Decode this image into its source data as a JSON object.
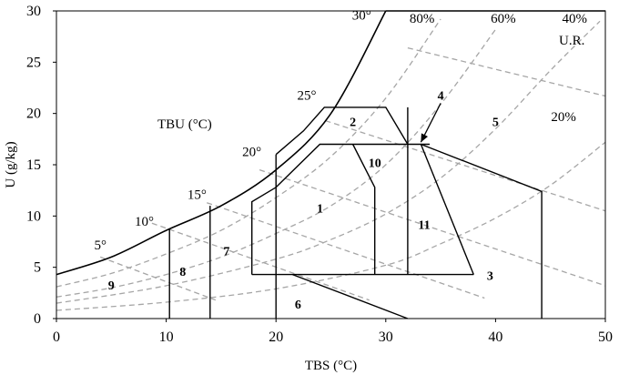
{
  "chart_data": {
    "type": "psychrometric",
    "xlabel": "TBS (°C)",
    "ylabel": "U (g/kg)",
    "xlim": [
      0,
      50
    ],
    "ylim": [
      0,
      30
    ],
    "xticks": [
      "0",
      "10",
      "20",
      "30",
      "40",
      "50"
    ],
    "yticks": [
      "0",
      "5",
      "10",
      "15",
      "20",
      "25",
      "30"
    ],
    "annotations": {
      "tbu_label": "TBU (°C)",
      "ur_label": "U.R.",
      "arrow_label": "4"
    },
    "saturation_curve": {
      "x": [
        0,
        5,
        10,
        15,
        20,
        25,
        30
      ],
      "y": [
        4.3,
        6.0,
        8.6,
        11.0,
        14.5,
        20.0,
        30.0
      ]
    },
    "wet_bulb_labels": [
      {
        "t": 5,
        "label": "5°",
        "tx": 4.0,
        "ty": 7.2
      },
      {
        "t": 10,
        "label": "10°",
        "tx": 8.0,
        "ty": 9.5
      },
      {
        "t": 15,
        "label": "15°",
        "tx": 12.8,
        "ty": 12.1
      },
      {
        "t": 20,
        "label": "20°",
        "tx": 17.8,
        "ty": 16.3
      },
      {
        "t": 25,
        "label": "25°",
        "tx": 22.8,
        "ty": 21.8
      },
      {
        "t": 30,
        "label": "30°",
        "tx": 27.8,
        "ty": 29.6
      }
    ],
    "wet_bulb_lines": [
      {
        "t": 5,
        "x": [
          4.0,
          14.5
        ],
        "y": [
          6.0,
          1.8
        ]
      },
      {
        "t": 10,
        "x": [
          8.7,
          28.5
        ],
        "y": [
          9.3,
          1.8
        ]
      },
      {
        "t": 15,
        "x": [
          13.7,
          39.0
        ],
        "y": [
          11.3,
          2.0
        ]
      },
      {
        "t": 20,
        "x": [
          18.5,
          50.0
        ],
        "y": [
          14.5,
          3.2
        ]
      },
      {
        "t": 25,
        "x": [
          24.5,
          50.0
        ],
        "y": [
          19.3,
          10.5
        ]
      },
      {
        "t": 30,
        "x": [
          32.0,
          50.0
        ],
        "y": [
          26.4,
          21.7
        ]
      }
    ],
    "rh_curves": [
      {
        "label": "80%",
        "tx": 33.3,
        "ty": 29.3,
        "x": [
          0,
          5,
          10,
          15,
          20,
          25,
          30,
          35
        ],
        "y": [
          3.1,
          4.4,
          6.3,
          8.6,
          11.8,
          15.8,
          21.5,
          29.2
        ]
      },
      {
        "label": "60%",
        "tx": 40.7,
        "ty": 29.3,
        "x": [
          0,
          5,
          10,
          15,
          20,
          25,
          30,
          35,
          40
        ],
        "y": [
          2.1,
          3.0,
          4.3,
          6.0,
          8.3,
          11.0,
          15.0,
          20.9,
          28.2
        ]
      },
      {
        "label": "40%",
        "tx": 47.2,
        "ty": 29.3,
        "x": [
          0,
          10,
          20,
          25,
          30,
          35,
          40,
          45,
          49.5
        ],
        "y": [
          1.5,
          3.2,
          5.8,
          7.7,
          10.2,
          13.7,
          18.5,
          24.2,
          29.0
        ]
      },
      {
        "label": "20%",
        "tx": 46.2,
        "ty": 19.7,
        "x": [
          0,
          10,
          20,
          30,
          35,
          40,
          45,
          50
        ],
        "y": [
          0.8,
          1.6,
          2.9,
          5.2,
          7.3,
          9.8,
          13.0,
          17.2
        ]
      }
    ],
    "zones": [
      {
        "label": "1",
        "tx": 24.0,
        "ty": 10.8
      },
      {
        "label": "2",
        "tx": 27.0,
        "ty": 19.2
      },
      {
        "label": "3",
        "tx": 39.5,
        "ty": 4.2
      },
      {
        "label": "4",
        "tx": 35.0,
        "ty": 21.8
      },
      {
        "label": "5",
        "tx": 40.0,
        "ty": 19.2
      },
      {
        "label": "6",
        "tx": 22.0,
        "ty": 1.4
      },
      {
        "label": "7",
        "tx": 15.5,
        "ty": 6.6
      },
      {
        "label": "8",
        "tx": 11.5,
        "ty": 4.6
      },
      {
        "label": "9",
        "tx": 5.0,
        "ty": 3.3
      },
      {
        "label": "10",
        "tx": 29.0,
        "ty": 15.2
      },
      {
        "label": "11",
        "tx": 33.5,
        "ty": 9.2
      }
    ],
    "zone_lines": [
      [
        [
          10.3,
          0
        ],
        [
          10.3,
          8.8
        ]
      ],
      [
        [
          14.0,
          0
        ],
        [
          14.0,
          11.0
        ]
      ],
      [
        [
          20.0,
          0
        ],
        [
          20.0,
          16.0
        ]
      ],
      [
        [
          17.8,
          4.3
        ],
        [
          38.0,
          4.3
        ]
      ],
      [
        [
          17.8,
          4.3
        ],
        [
          17.8,
          11.4
        ],
        [
          20.0,
          12.8
        ]
      ],
      [
        [
          20.0,
          12.8
        ],
        [
          24.0,
          17.0
        ],
        [
          34.0,
          17.0
        ]
      ],
      [
        [
          20.0,
          16.0
        ],
        [
          22.5,
          18.3
        ],
        [
          24.4,
          20.6
        ],
        [
          30.0,
          20.6
        ],
        [
          32.0,
          17.0
        ]
      ],
      [
        [
          32.0,
          20.6
        ],
        [
          32.0,
          4.3
        ]
      ],
      [
        [
          27.0,
          17.0
        ],
        [
          29.0,
          12.8
        ],
        [
          29.0,
          4.3
        ]
      ],
      [
        [
          33.2,
          17.0
        ],
        [
          38.0,
          4.3
        ]
      ],
      [
        [
          33.2,
          17.0
        ],
        [
          44.2,
          12.4
        ],
        [
          44.2,
          0
        ]
      ],
      [
        [
          21.5,
          4.3
        ],
        [
          32.0,
          0
        ]
      ]
    ],
    "arrow": {
      "from": [
        35.0,
        21.0
      ],
      "to": [
        33.2,
        17.2
      ]
    }
  }
}
